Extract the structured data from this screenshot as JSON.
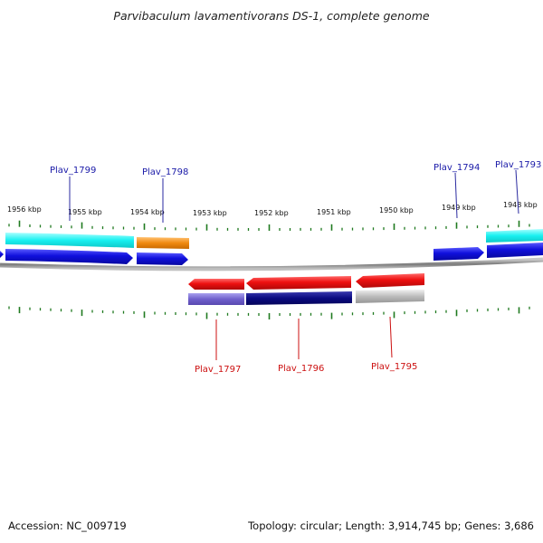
{
  "title": "Parvibaculum lavamentivorans DS-1, complete genome",
  "footer": {
    "accession": "Accession: NC_009719",
    "summary": "Topology: circular; Length: 3,914,745 bp; Genes: 3,686"
  },
  "kbp_labels": [
    "1956 kbp",
    "1955 kbp",
    "1954 kbp",
    "1953 kbp",
    "1952 kbp",
    "1951 kbp",
    "1950 kbp",
    "1949 kbp",
    "1948 kbp"
  ],
  "forward_genes": [
    "Plav_1799",
    "Plav_1798",
    "Plav_1794",
    "Plav_1793"
  ],
  "reverse_genes": [
    "Plav_1797",
    "Plav_1796",
    "Plav_1795"
  ],
  "colors": {
    "backbone": "#8a8a8a",
    "tick": "#1f7a1f",
    "forward_cds": "#1010cc",
    "reverse_cds": "#e01010",
    "cyan": "#19f0f0",
    "orange": "#f08a10",
    "purple": "#7060cc",
    "navy": "#0a0a80",
    "gray": "#b8b8b8"
  }
}
